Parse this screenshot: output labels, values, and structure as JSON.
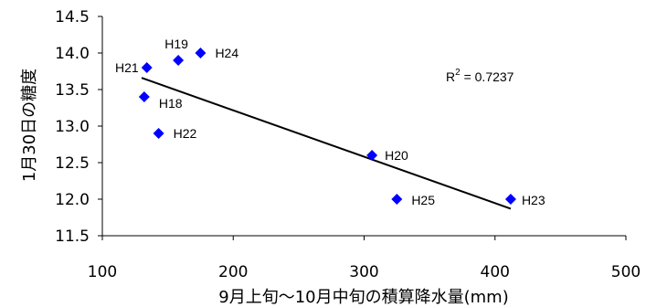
{
  "chart_data": {
    "type": "scatter",
    "title": "",
    "xlabel": "9月上旬～10月中旬の積算降水量(mm)",
    "ylabel": "1月30日の糖度",
    "xlim": [
      100,
      500
    ],
    "ylim": [
      11.5,
      14.5
    ],
    "xticks": [
      "100",
      "200",
      "300",
      "400",
      "500"
    ],
    "yticks": [
      "11.5",
      "12.0",
      "12.5",
      "13.0",
      "13.5",
      "14.0",
      "14.5"
    ],
    "grid": false,
    "legend": "none",
    "marker": "diamond",
    "marker_color": "#0000FF",
    "points": [
      {
        "label": "H19",
        "x": 158,
        "y": 13.9
      },
      {
        "label": "H24",
        "x": 175,
        "y": 14.0
      },
      {
        "label": "H21",
        "x": 134,
        "y": 13.8
      },
      {
        "label": "H18",
        "x": 132,
        "y": 13.4
      },
      {
        "label": "H22",
        "x": 143,
        "y": 12.9
      },
      {
        "label": "H20",
        "x": 306,
        "y": 12.6
      },
      {
        "label": "H25",
        "x": 325,
        "y": 12.0
      },
      {
        "label": "H23",
        "x": 412,
        "y": 12.0
      }
    ],
    "trendline": {
      "type": "linear",
      "x": [
        130,
        412
      ],
      "y": [
        13.66,
        11.87
      ],
      "color": "#000000"
    },
    "annotation": {
      "base": "R",
      "sup": "2",
      "rest": " = 0.7237"
    }
  }
}
